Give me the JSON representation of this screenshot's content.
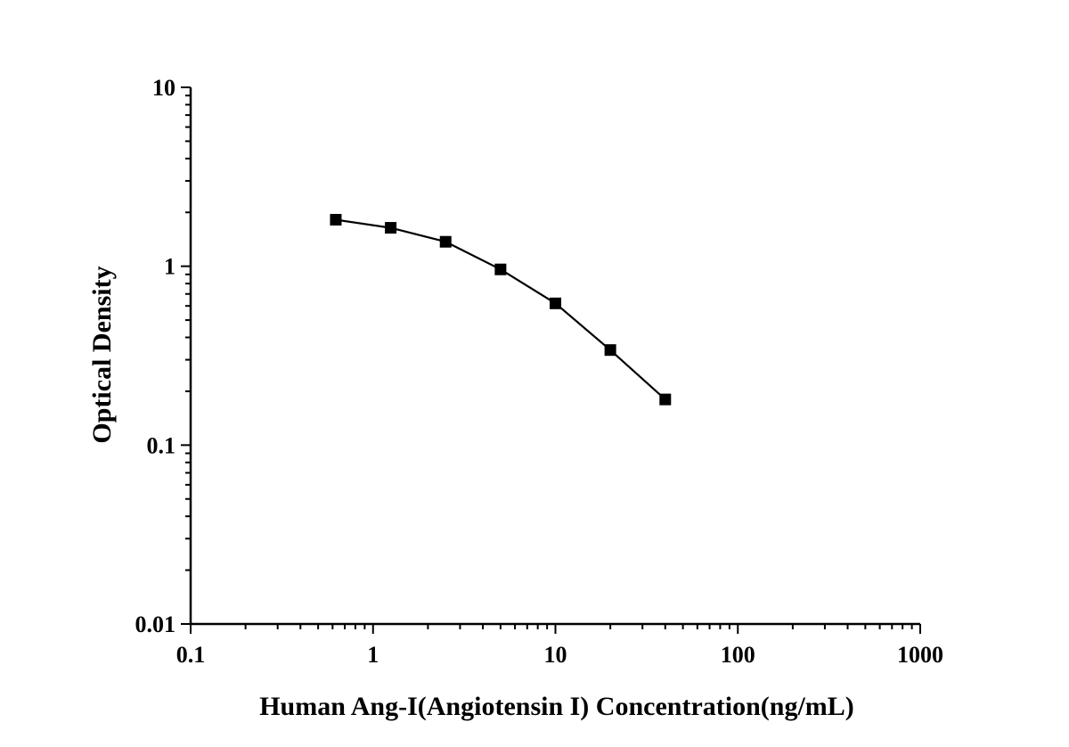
{
  "chart_data": {
    "type": "line",
    "title": "",
    "xlabel": "Human Ang-I(Angiotensin I) Concentration(ng/mL)",
    "ylabel": "Optical Density",
    "xscale": "log",
    "yscale": "log",
    "xlim": [
      0.1,
      1000
    ],
    "ylim": [
      0.01,
      10
    ],
    "xticks": [
      0.1,
      1,
      10,
      100,
      1000
    ],
    "xtick_labels": [
      "0.1",
      "1",
      "10",
      "100",
      "1000"
    ],
    "yticks": [
      0.01,
      0.1,
      1,
      10
    ],
    "ytick_labels": [
      "0.01",
      "0.1",
      "1",
      "10"
    ],
    "grid": false,
    "marker": "square",
    "line_color": "#000000",
    "series": [
      {
        "x": [
          0.625,
          1.25,
          2.5,
          5,
          10,
          20,
          40
        ],
        "y": [
          1.82,
          1.64,
          1.37,
          0.96,
          0.62,
          0.34,
          0.18
        ]
      }
    ]
  }
}
